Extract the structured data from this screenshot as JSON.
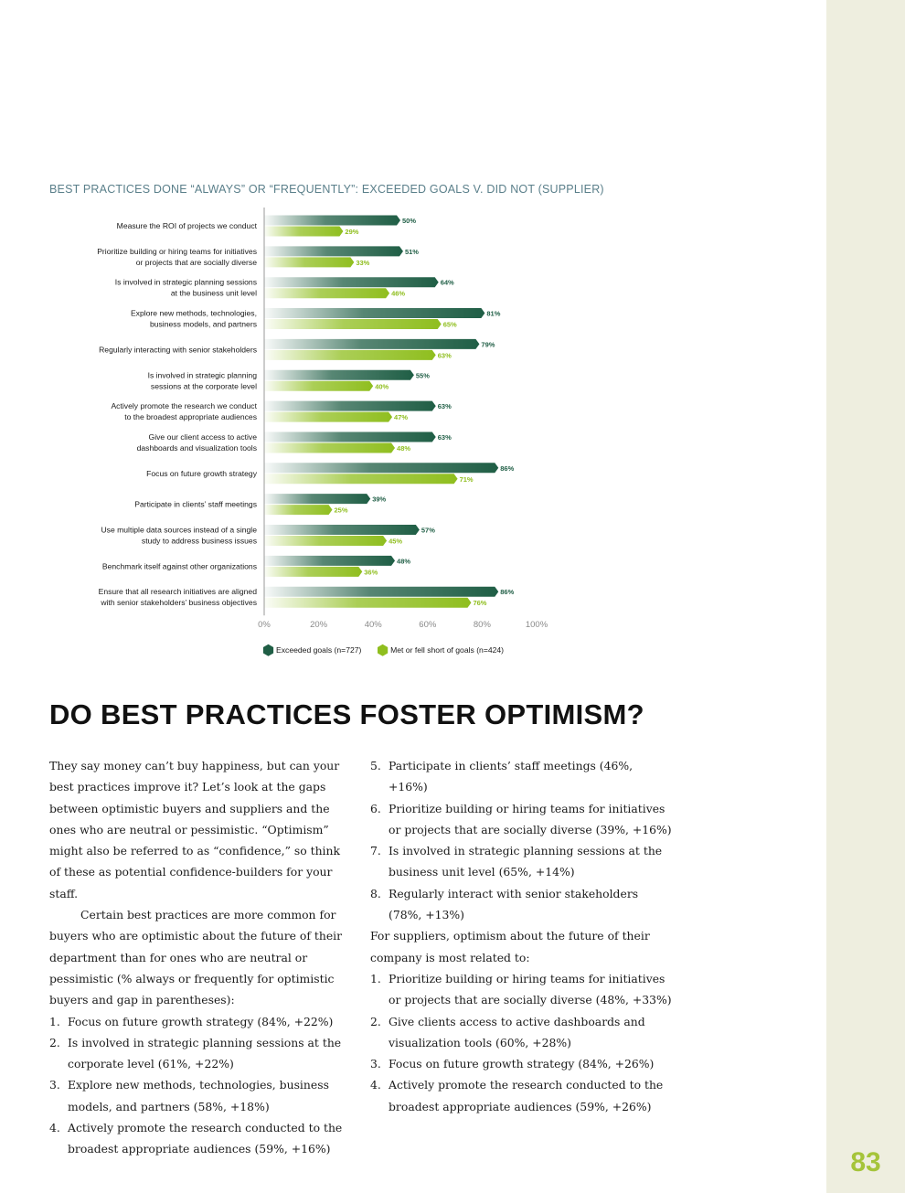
{
  "page_number": "83",
  "chart_data": {
    "type": "bar",
    "orientation": "horizontal",
    "title": "BEST PRACTICES DONE “ALWAYS” OR “FREQUENTLY”: EXCEEDED GOALS V. DID NOT (SUPPLIER)",
    "categories": [
      [
        "Measure the ROI of projects we conduct"
      ],
      [
        "Prioritize building or hiring teams for initiatives",
        "or projects that are socially diverse"
      ],
      [
        "Is involved in strategic planning sessions",
        "at the business unit level"
      ],
      [
        "Explore new methods, technologies,",
        "business models, and partners"
      ],
      [
        "Regularly interacting with senior stakeholders"
      ],
      [
        "Is involved in strategic planning",
        "sessions at the corporate level"
      ],
      [
        "Actively promote the research we conduct",
        "to the broadest appropriate audiences"
      ],
      [
        "Give our client access to active",
        "dashboards and visualization tools"
      ],
      [
        "Focus on future growth strategy"
      ],
      [
        "Participate in clients’ staff meetings"
      ],
      [
        "Use multiple data sources instead of a single",
        "study to address business issues"
      ],
      [
        "Benchmark itself against other organizations"
      ],
      [
        "Ensure that all research initiatives are aligned",
        "with senior stakeholders’ business objectives"
      ]
    ],
    "series": [
      {
        "name": "Exceeded goals (n=727)",
        "color": "#1f5e45",
        "values": [
          50,
          51,
          64,
          81,
          79,
          55,
          63,
          63,
          86,
          39,
          57,
          48,
          86
        ]
      },
      {
        "name": "Met or fell short of goals (n=424)",
        "color": "#8fbe1e",
        "values": [
          29,
          33,
          46,
          65,
          63,
          40,
          47,
          48,
          71,
          25,
          45,
          36,
          76
        ]
      }
    ],
    "xlim": [
      0,
      100
    ],
    "x_ticks": [
      "0%",
      "20%",
      "40%",
      "60%",
      "80%",
      "100%"
    ],
    "legend_position": "bottom",
    "grid": false
  },
  "article": {
    "heading": "DO BEST PRACTICES FOSTER OPTIMISM?",
    "p1": "They say money can’t buy happiness, but can your best practices improve it? Let’s look at the gaps between optimistic buyers and suppliers and the ones who are neutral or pessimistic. “Optimism” might also be referred to as “confidence,” so think of these as potential confidence-builders for your staff.",
    "p2": "Certain best practices are more common for buyers who are optimistic about the future of their department than for ones who are neutral or pessimistic (% always or frequently for optimistic buyers and gap in parentheses):",
    "buyer_list": [
      {
        "num": "1.",
        "text": "Focus on future growth strategy (84%, +22%)"
      },
      {
        "num": "2.",
        "text": "Is involved in strategic planning sessions at the corporate level (61%, +22%)"
      },
      {
        "num": "3.",
        "text": "Explore new methods, technologies, business models, and partners (58%, +18%)"
      },
      {
        "num": "4.",
        "text": "Actively promote the research conducted to the broadest appropriate audiences (59%, +16%)"
      },
      {
        "num": "5.",
        "text": "Participate in clients’ staff meetings (46%, +16%)"
      },
      {
        "num": "6.",
        "text": "Prioritize building or hiring teams for initiatives or projects that are socially diverse (39%, +16%)"
      },
      {
        "num": "7.",
        "text": "Is involved in strategic planning sessions at the business unit level (65%, +14%)"
      },
      {
        "num": "8.",
        "text": "Regularly interact with senior stakeholders (78%, +13%)"
      }
    ],
    "p3": "For suppliers, optimism about the future of their company is most related to:",
    "supplier_list": [
      {
        "num": "1.",
        "text": "Prioritize building or hiring teams for initiatives or projects that are socially diverse (48%, +33%)"
      },
      {
        "num": "2.",
        "text": "Give clients access to active dashboards and visualization tools (60%, +28%)"
      },
      {
        "num": "3.",
        "text": "Focus on future growth strategy (84%, +26%)"
      },
      {
        "num": "4.",
        "text": "Actively promote the research conducted to the broadest appropriate audiences (59%, +26%)"
      }
    ]
  }
}
